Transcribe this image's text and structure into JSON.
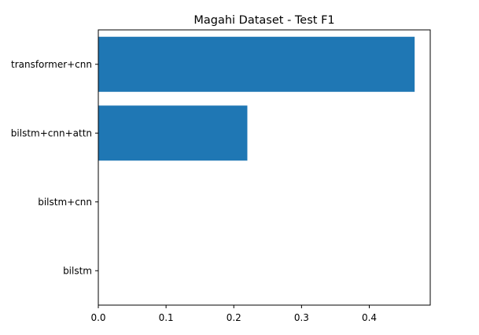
{
  "chart_data": {
    "type": "bar",
    "orientation": "horizontal",
    "title": "Magahi Dataset - Test F1",
    "xlabel": "",
    "ylabel": "",
    "categories": [
      "bilstm",
      "bilstm+cnn",
      "bilstm+cnn+attn",
      "transformer+cnn"
    ],
    "values": [
      0.0,
      0.0,
      0.22,
      0.467
    ],
    "xlim": [
      0.0,
      0.49
    ],
    "xticks": [
      "0.0",
      "0.1",
      "0.2",
      "0.3",
      "0.4"
    ],
    "grid": false,
    "legend": "none",
    "colors": {
      "bar": "#1f77b4",
      "axis": "#000000",
      "background": "#ffffff"
    }
  }
}
